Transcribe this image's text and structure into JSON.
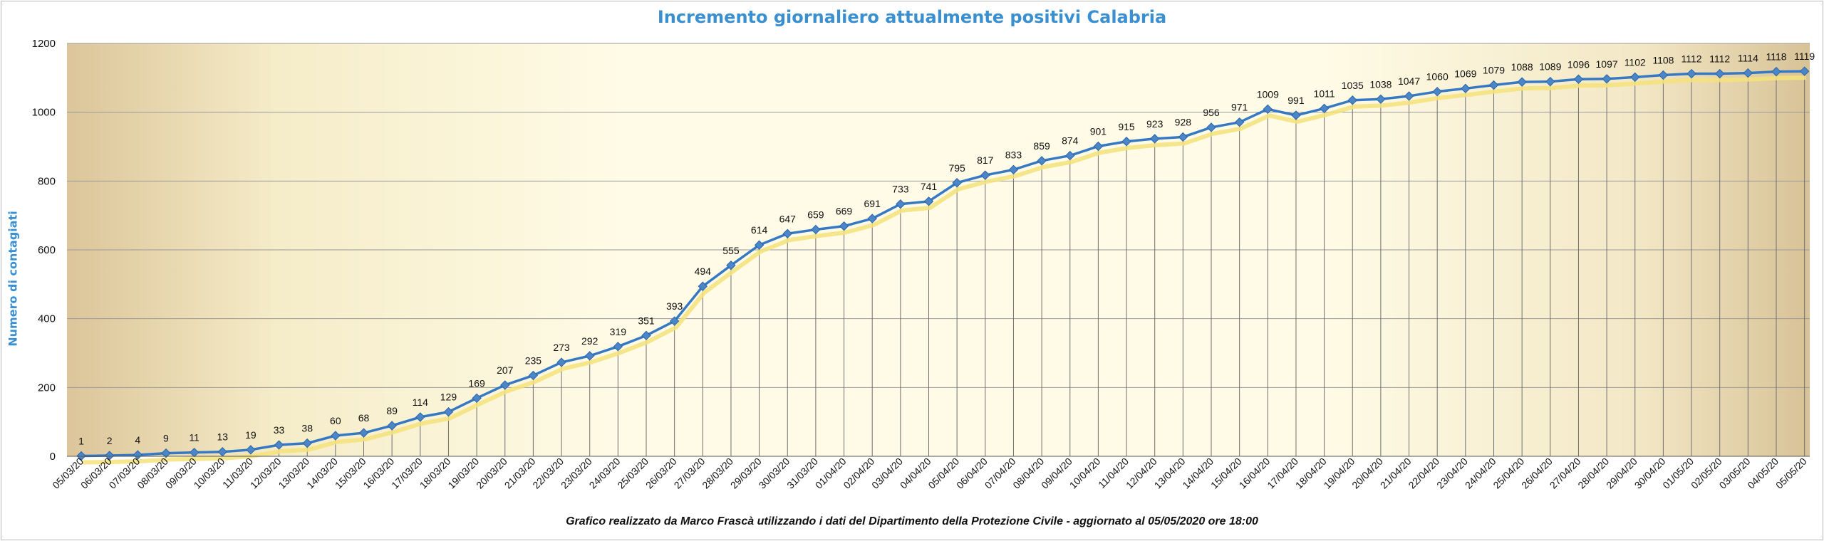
{
  "colors": {
    "line": "#3579c4",
    "marker": "#4a86c8",
    "shadow": "#f4e27a",
    "title": "#3a8fd0",
    "vline": "#6e6e6e",
    "hgrid": "#9a9a9a"
  },
  "footer": {
    "credit": "Grafico  realizzato da Marco Frascà  utilizzando i dati del Dipartimento  della Protezione Civile  - aggiornato al 05/05/2020 ore 18:00"
  },
  "chart_data": {
    "type": "line",
    "title": "Incremento giornaliero attualmente positivi Calabria",
    "xlabel": "",
    "ylabel": "Numero di contagiati",
    "ylim": [
      0,
      1200
    ],
    "yticks": [
      0,
      200,
      400,
      600,
      800,
      1000,
      1200
    ],
    "grid": "horizontal and vertical",
    "legend": "none",
    "categories": [
      "05/03/20",
      "06/03/20",
      "07/03/20",
      "08/03/20",
      "09/03/20",
      "10/03/20",
      "11/03/20",
      "12/03/20",
      "13/03/20",
      "14/03/20",
      "15/03/20",
      "16/03/20",
      "17/03/20",
      "18/03/20",
      "19/03/20",
      "20/03/20",
      "21/03/20",
      "22/03/20",
      "23/03/20",
      "24/03/20",
      "25/03/20",
      "26/03/20",
      "27/03/20",
      "28/03/20",
      "29/03/20",
      "30/03/20",
      "31/03/20",
      "01/04/20",
      "02/04/20",
      "03/04/20",
      "04/04/20",
      "05/04/20",
      "06/04/20",
      "07/04/20",
      "08/04/20",
      "09/04/20",
      "10/04/20",
      "11/04/20",
      "12/04/20",
      "13/04/20",
      "14/04/20",
      "15/04/20",
      "16/04/20",
      "17/04/20",
      "18/04/20",
      "19/04/20",
      "20/04/20",
      "21/04/20",
      "22/04/20",
      "23/04/20",
      "24/04/20",
      "25/04/20",
      "26/04/20",
      "27/04/20",
      "28/04/20",
      "29/04/20",
      "30/04/20",
      "01/05/20",
      "02/05/20",
      "03/05/20",
      "04/05/20",
      "05/05/20"
    ],
    "values": [
      1,
      2,
      4,
      9,
      11,
      13,
      19,
      33,
      38,
      60,
      68,
      89,
      114,
      129,
      169,
      207,
      235,
      273,
      292,
      319,
      351,
      393,
      494,
      555,
      614,
      647,
      659,
      669,
      691,
      733,
      741,
      795,
      817,
      833,
      859,
      874,
      901,
      915,
      923,
      928,
      956,
      971,
      1009,
      991,
      1011,
      1035,
      1038,
      1047,
      1060,
      1069,
      1079,
      1088,
      1089,
      1096,
      1097,
      1102,
      1108,
      1112,
      1112,
      1114,
      1118,
      1119
    ]
  }
}
